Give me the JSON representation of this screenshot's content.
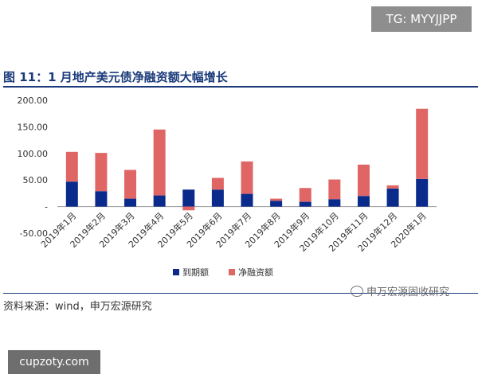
{
  "header": {
    "badge": "TG: MYYJJPP"
  },
  "figure": {
    "title": "图 11：1 月地产美元债净融资额大幅增长"
  },
  "footer": {
    "source": "资料来源：wind，申万宏源研究",
    "watermark": "申万宏源固收研究",
    "site_badge": "cupzoty.com"
  },
  "colors": {
    "series_1": "#0a2b8c",
    "series_2": "#e06666",
    "title": "#1a3a7a"
  },
  "chart_data": {
    "type": "bar",
    "stacked": true,
    "title": "",
    "xlabel": "",
    "ylabel": "",
    "categories": [
      "2019年1月",
      "2019年2月",
      "2019年3月",
      "2019年4月",
      "2019年5月",
      "2019年6月",
      "2019年7月",
      "2019年8月",
      "2019年9月",
      "2019年10月",
      "2019年11月",
      "2019年12月",
      "2020年1月"
    ],
    "series": [
      {
        "name": "到期额",
        "values": [
          47,
          29,
          15,
          21,
          32,
          32,
          24,
          11,
          9,
          14,
          20,
          34,
          52
        ]
      },
      {
        "name": "净融资额",
        "values": [
          56,
          72,
          54,
          124,
          -7,
          22,
          61,
          4,
          26,
          37,
          59,
          6,
          132
        ]
      }
    ],
    "ylim": [
      -50,
      200
    ],
    "yticks": [
      "200.00",
      "150.00",
      "100.00",
      "50.00",
      "-",
      "-50.00"
    ],
    "yticks_values": [
      200,
      150,
      100,
      50,
      0,
      -50
    ],
    "grid": false,
    "legend": "bottom"
  }
}
